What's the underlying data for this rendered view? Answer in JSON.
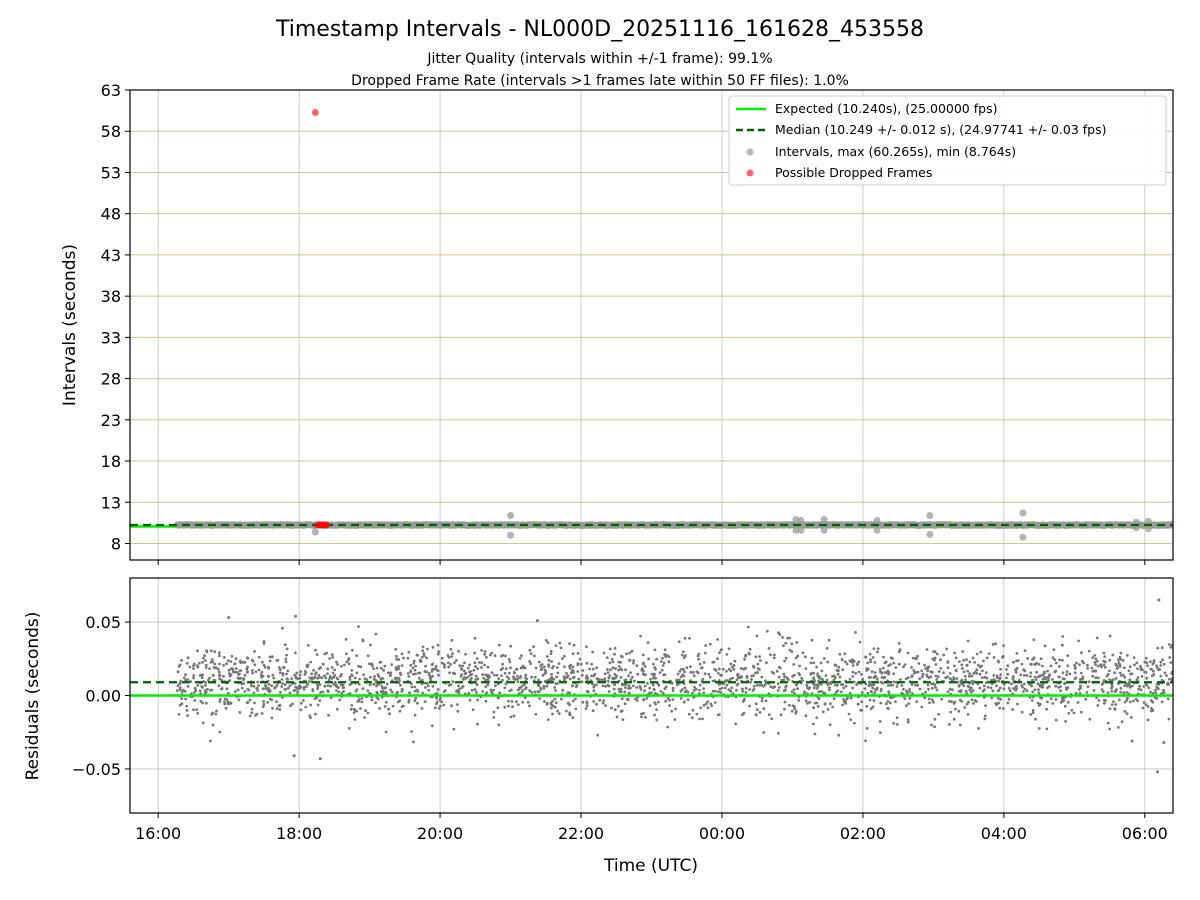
{
  "chart_data": [
    {
      "type": "scatter",
      "panel": "intervals",
      "title": "Timestamp Intervals - NL000D_20251116_161628_453558",
      "subtitle_lines": [
        "Jitter Quality (intervals within +/-1 frame): 99.1%",
        "Dropped Frame Rate (intervals >1 frames late within 50 FF files): 1.0%"
      ],
      "ylabel": "Intervals (seconds)",
      "xlim": [
        15.6,
        30.4
      ],
      "ylim": [
        6.0,
        63.0
      ],
      "y_ticks": [
        8,
        13,
        18,
        23,
        28,
        33,
        38,
        43,
        48,
        53,
        58,
        63
      ],
      "grid": true,
      "legend_position": "top-right",
      "series": [
        {
          "name": "Expected (10.240s), (25.00000 fps)",
          "kind": "hline",
          "y": 10.24,
          "color": "#00ee00",
          "style": "solid"
        },
        {
          "name": "Median (10.249 +/- 0.012 s), (24.97741 +/- 0.03 fps)",
          "kind": "hline",
          "y": 10.249,
          "color": "#006400",
          "style": "dashed"
        },
        {
          "name": "Intervals, max (60.265s), min (8.764s)",
          "kind": "scatter",
          "color": "#999999",
          "x_range": [
            16.27,
            30.4
          ],
          "y_base": 10.24,
          "outliers": [
            {
              "x": 18.23,
              "y": 9.4
            },
            {
              "x": 21.0,
              "y": 11.4
            },
            {
              "x": 21.0,
              "y": 9.0
            },
            {
              "x": 25.05,
              "y": 10.9
            },
            {
              "x": 25.05,
              "y": 9.6
            },
            {
              "x": 25.12,
              "y": 10.8
            },
            {
              "x": 25.12,
              "y": 9.6
            },
            {
              "x": 25.45,
              "y": 10.9
            },
            {
              "x": 25.45,
              "y": 9.6
            },
            {
              "x": 26.2,
              "y": 10.8
            },
            {
              "x": 26.2,
              "y": 9.6
            },
            {
              "x": 26.95,
              "y": 11.4
            },
            {
              "x": 26.95,
              "y": 9.1
            },
            {
              "x": 28.27,
              "y": 11.7
            },
            {
              "x": 28.27,
              "y": 8.764
            },
            {
              "x": 29.88,
              "y": 10.6
            },
            {
              "x": 29.88,
              "y": 9.9
            },
            {
              "x": 30.05,
              "y": 10.7
            },
            {
              "x": 30.05,
              "y": 9.8
            }
          ]
        },
        {
          "name": "Possible Dropped Frames",
          "kind": "scatter",
          "color": "#ff0000",
          "points": [
            {
              "x": 18.23,
              "y": 60.265
            },
            {
              "x": 18.26,
              "y": 10.24
            },
            {
              "x": 18.29,
              "y": 10.24
            },
            {
              "x": 18.31,
              "y": 10.24
            },
            {
              "x": 18.33,
              "y": 10.24
            },
            {
              "x": 18.35,
              "y": 10.24
            },
            {
              "x": 18.37,
              "y": 10.24
            },
            {
              "x": 18.39,
              "y": 10.24
            }
          ]
        }
      ]
    },
    {
      "type": "scatter",
      "panel": "residuals",
      "xlabel": "Time (UTC)",
      "ylabel": "Residuals (seconds)",
      "xlim": [
        15.6,
        30.4
      ],
      "ylim": [
        -0.08,
        0.08
      ],
      "y_ticks": [
        {
          "value": 0.05,
          "label": "0.05"
        },
        {
          "value": 0.0,
          "label": "0.00"
        },
        {
          "value": -0.05,
          "label": "−0.05"
        }
      ],
      "x_ticks": [
        {
          "value": 16,
          "label": "16:00"
        },
        {
          "value": 18,
          "label": "18:00"
        },
        {
          "value": 20,
          "label": "20:00"
        },
        {
          "value": 22,
          "label": "22:00"
        },
        {
          "value": 24,
          "label": "00:00"
        },
        {
          "value": 26,
          "label": "02:00"
        },
        {
          "value": 28,
          "label": "04:00"
        },
        {
          "value": 30,
          "label": "06:00"
        }
      ],
      "grid": true,
      "series": [
        {
          "kind": "hline",
          "y": 0.0,
          "color": "#00ee00",
          "style": "solid"
        },
        {
          "kind": "hline",
          "y": 0.009,
          "color": "#006400",
          "style": "dashed"
        },
        {
          "kind": "scatter",
          "color": "#777777",
          "x_range": [
            16.27,
            30.4
          ],
          "center": 0.009,
          "spread": 0.012,
          "count": 2600,
          "extremes": [
            {
              "x": 17.0,
              "y": 0.053
            },
            {
              "x": 17.95,
              "y": 0.054
            },
            {
              "x": 17.93,
              "y": -0.041
            },
            {
              "x": 18.3,
              "y": -0.043
            },
            {
              "x": 21.38,
              "y": 0.051
            },
            {
              "x": 29.82,
              "y": -0.031
            },
            {
              "x": 30.2,
              "y": 0.065
            },
            {
              "x": 30.18,
              "y": -0.052
            },
            {
              "x": 30.27,
              "y": -0.032
            }
          ]
        }
      ]
    }
  ]
}
